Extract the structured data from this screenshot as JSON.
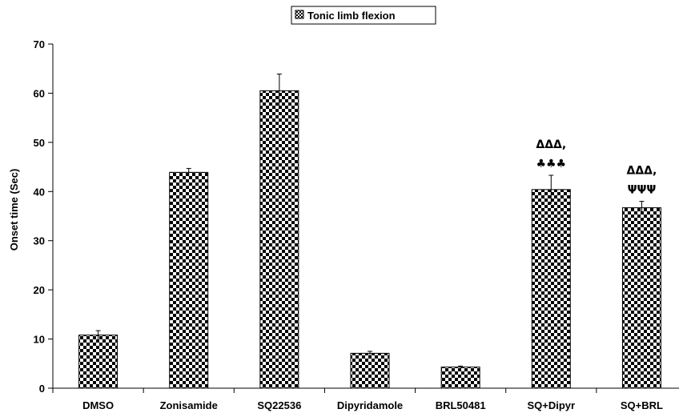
{
  "chart_data": {
    "type": "bar",
    "title": "",
    "xlabel": "",
    "ylabel": "Onset time (Sec)",
    "ylim": [
      0,
      70
    ],
    "yticks": [
      0,
      10,
      20,
      30,
      40,
      50,
      60,
      70
    ],
    "categories": [
      "DMSO",
      "Zonisamide",
      "SQ22536",
      "Dipyridamole",
      "BRL50481",
      "SQ+Dipyr",
      "SQ+BRL"
    ],
    "series": [
      {
        "name": "Tonic limb flexion",
        "values": [
          10.8,
          43.9,
          60.5,
          7.1,
          4.3,
          40.4,
          36.7
        ],
        "errors": [
          0.9,
          0.8,
          3.4,
          0.4,
          0.2,
          2.9,
          1.3
        ]
      }
    ],
    "annotations": [
      {
        "category": "SQ+Dipyr",
        "lines": [
          "ΔΔΔ,",
          "♣♣♣"
        ]
      },
      {
        "category": "SQ+BRL",
        "lines": [
          "ΔΔΔ,",
          "ΨΨΨ"
        ]
      }
    ],
    "legend_position": "top-center",
    "pattern": "checkerboard",
    "colors": {
      "bar": "#000000",
      "background": "#ffffff"
    }
  }
}
